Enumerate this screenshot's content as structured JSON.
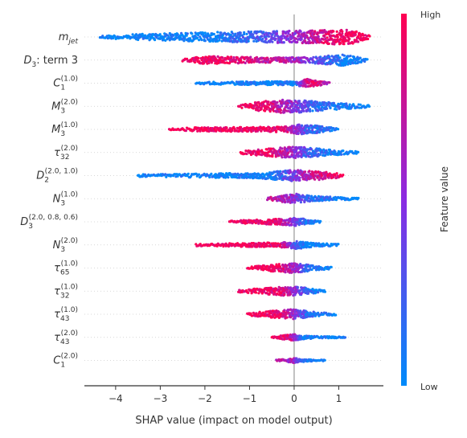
{
  "chart_data": {
    "type": "scatter",
    "subtype": "shap-beeswarm",
    "title": "",
    "xlabel": "SHAP value (impact on model output)",
    "ylabel": "",
    "xlim": [
      -4.7,
      2.0
    ],
    "xticks": [
      -4,
      -3,
      -2,
      -1,
      0,
      1
    ],
    "xtick_labels": [
      "−4",
      "−3",
      "−2",
      "−1",
      "0",
      "1"
    ],
    "grid": "dotted horizontal row guides",
    "zero_line": true,
    "colorbar": {
      "label": "Feature value",
      "high_label": "High",
      "low_label": "Low",
      "high_color": "#ff0052",
      "mid_color": "#8a2be2",
      "low_color": "#008bfb",
      "placement": "right"
    },
    "features": [
      {
        "label": "m_jet",
        "base": "m",
        "sub": "jet",
        "sup": "",
        "min": -4.35,
        "max": 1.7,
        "q": [
          -0.8,
          0.0,
          0.9
        ],
        "spread": 9,
        "profile": [
          [
            -4.35,
            0.2
          ],
          [
            -3.0,
            0.5
          ],
          [
            -1.5,
            0.7
          ],
          [
            -0.5,
            0.8
          ],
          [
            0.3,
            0.9
          ],
          [
            0.9,
            1.0
          ],
          [
            1.3,
            0.95
          ],
          [
            1.6,
            0.5
          ],
          [
            1.7,
            0.15
          ]
        ],
        "color_stops": [
          [
            -4.35,
            0.0
          ],
          [
            -2.0,
            0.02
          ],
          [
            -0.8,
            0.25
          ],
          [
            0.0,
            0.55
          ],
          [
            0.9,
            0.95
          ],
          [
            1.7,
            1.0
          ]
        ]
      },
      {
        "label": "D_3: term 3",
        "base": "D",
        "sub": "3",
        "sup": "",
        "suffix": ": term 3",
        "min": -2.5,
        "max": 1.65,
        "q": [
          -1.0,
          0.6,
          1.1
        ],
        "spread": 7,
        "profile": [
          [
            -2.5,
            0.2
          ],
          [
            -2.0,
            0.7
          ],
          [
            -1.5,
            0.6
          ],
          [
            -0.5,
            0.45
          ],
          [
            0.3,
            0.5
          ],
          [
            0.8,
            0.8
          ],
          [
            1.1,
            1.0
          ],
          [
            1.4,
            0.6
          ],
          [
            1.65,
            0.15
          ]
        ],
        "color_stops": [
          [
            -2.5,
            1.0
          ],
          [
            -1.5,
            0.9
          ],
          [
            -0.2,
            0.7
          ],
          [
            0.5,
            0.35
          ],
          [
            1.1,
            0.05
          ],
          [
            1.65,
            0.0
          ]
        ]
      },
      {
        "label": "C_1^(1.0)",
        "base": "C",
        "sub": "1",
        "sup": "(1.0)",
        "min": -2.2,
        "max": 0.8,
        "q": [
          -0.2,
          0.3,
          0.45
        ],
        "spread": 5,
        "profile": [
          [
            -2.2,
            0.25
          ],
          [
            -1.5,
            0.35
          ],
          [
            -0.5,
            0.45
          ],
          [
            0.0,
            0.55
          ],
          [
            0.3,
            1.0
          ],
          [
            0.5,
            0.7
          ],
          [
            0.8,
            0.2
          ]
        ],
        "color_stops": [
          [
            -2.2,
            0.0
          ],
          [
            0.0,
            0.05
          ],
          [
            0.25,
            0.7
          ],
          [
            0.4,
            0.95
          ],
          [
            0.8,
            0.55
          ]
        ]
      },
      {
        "label": "M_3^(2.0)",
        "base": "M",
        "sub": "3",
        "sup": "(2.0)",
        "min": -1.25,
        "max": 1.7,
        "q": [
          -0.4,
          0.05,
          0.5
        ],
        "spread": 8,
        "profile": [
          [
            -1.25,
            0.2
          ],
          [
            -0.8,
            0.7
          ],
          [
            -0.3,
            1.0
          ],
          [
            0.2,
            0.95
          ],
          [
            0.6,
            0.7
          ],
          [
            1.0,
            0.5
          ],
          [
            1.7,
            0.15
          ]
        ],
        "color_stops": [
          [
            -1.25,
            1.0
          ],
          [
            -0.6,
            0.9
          ],
          [
            0.0,
            0.5
          ],
          [
            0.4,
            0.2
          ],
          [
            1.7,
            0.0
          ]
        ]
      },
      {
        "label": "M_3^(1.0)",
        "base": "M",
        "sub": "3",
        "sup": "(1.0)",
        "min": -2.8,
        "max": 1.0,
        "q": [
          -0.6,
          0.1,
          0.45
        ],
        "spread": 6,
        "profile": [
          [
            -2.8,
            0.15
          ],
          [
            -2.2,
            0.4
          ],
          [
            -1.0,
            0.45
          ],
          [
            -0.2,
            0.6
          ],
          [
            0.1,
            1.0
          ],
          [
            0.5,
            0.8
          ],
          [
            1.0,
            0.2
          ]
        ],
        "color_stops": [
          [
            -2.8,
            1.0
          ],
          [
            -0.3,
            0.95
          ],
          [
            0.0,
            0.6
          ],
          [
            0.3,
            0.25
          ],
          [
            1.0,
            0.0
          ]
        ]
      },
      {
        "label": "τ_32^(2.0)",
        "base": "τ",
        "sub": "32",
        "sup": "(2.0)",
        "min": -1.2,
        "max": 1.45,
        "q": [
          -0.3,
          0.05,
          0.4
        ],
        "spread": 7,
        "profile": [
          [
            -1.2,
            0.25
          ],
          [
            -0.7,
            0.6
          ],
          [
            -0.1,
            1.0
          ],
          [
            0.3,
            0.9
          ],
          [
            0.7,
            0.55
          ],
          [
            1.45,
            0.2
          ]
        ],
        "color_stops": [
          [
            -1.2,
            1.0
          ],
          [
            -0.5,
            0.9
          ],
          [
            0.0,
            0.55
          ],
          [
            0.4,
            0.2
          ],
          [
            1.45,
            0.0
          ]
        ]
      },
      {
        "label": "D_2^(2.0, 1.0)",
        "base": "D",
        "sub": "2",
        "sup": "(2.0, 1.0)",
        "min": -3.5,
        "max": 1.1,
        "q": [
          -0.3,
          0.05,
          0.45
        ],
        "spread": 7,
        "profile": [
          [
            -3.5,
            0.2
          ],
          [
            -2.0,
            0.35
          ],
          [
            -0.8,
            0.5
          ],
          [
            0.0,
            1.0
          ],
          [
            0.5,
            0.8
          ],
          [
            0.9,
            0.5
          ],
          [
            1.1,
            0.25
          ]
        ],
        "color_stops": [
          [
            -3.5,
            0.0
          ],
          [
            -0.5,
            0.05
          ],
          [
            0.0,
            0.45
          ],
          [
            0.5,
            0.8
          ],
          [
            1.1,
            1.0
          ]
        ]
      },
      {
        "label": "N_3^(1.0)",
        "base": "N",
        "sub": "3",
        "sup": "(1.0)",
        "min": -0.6,
        "max": 1.45,
        "q": [
          -0.2,
          0.05,
          0.3
        ],
        "spread": 6,
        "profile": [
          [
            -0.6,
            0.3
          ],
          [
            -0.2,
            0.75
          ],
          [
            0.05,
            1.0
          ],
          [
            0.4,
            0.55
          ],
          [
            0.9,
            0.35
          ],
          [
            1.45,
            0.2
          ]
        ],
        "color_stops": [
          [
            -0.6,
            0.75
          ],
          [
            0.0,
            0.55
          ],
          [
            0.3,
            0.2
          ],
          [
            1.45,
            0.0
          ]
        ]
      },
      {
        "label": "D_3^(2.0, 0.8, 0.6)",
        "base": "D",
        "sub": "3",
        "sup": "(2.0, 0.8, 0.6)",
        "min": -1.45,
        "max": 0.6,
        "q": [
          -0.35,
          0.05,
          0.25
        ],
        "spread": 5,
        "profile": [
          [
            -1.45,
            0.25
          ],
          [
            -0.8,
            0.55
          ],
          [
            -0.2,
            0.8
          ],
          [
            0.05,
            1.0
          ],
          [
            0.3,
            0.6
          ],
          [
            0.6,
            0.2
          ]
        ],
        "color_stops": [
          [
            -1.45,
            1.0
          ],
          [
            -0.4,
            0.9
          ],
          [
            0.0,
            0.5
          ],
          [
            0.25,
            0.15
          ],
          [
            0.6,
            0.0
          ]
        ]
      },
      {
        "label": "N_3^(2.0)",
        "base": "N",
        "sub": "3",
        "sup": "(2.0)",
        "min": -2.2,
        "max": 1.0,
        "q": [
          -0.5,
          0.0,
          0.25
        ],
        "spread": 5,
        "profile": [
          [
            -2.2,
            0.3
          ],
          [
            -1.0,
            0.45
          ],
          [
            -0.2,
            0.65
          ],
          [
            0.05,
            1.0
          ],
          [
            0.4,
            0.5
          ],
          [
            1.0,
            0.2
          ]
        ],
        "color_stops": [
          [
            -2.2,
            1.0
          ],
          [
            -0.3,
            0.9
          ],
          [
            0.0,
            0.3
          ],
          [
            0.3,
            0.02
          ],
          [
            1.0,
            0.0
          ]
        ]
      },
      {
        "label": "τ_65^(1.0)",
        "base": "τ",
        "sub": "65",
        "sup": "(1.0)",
        "min": -1.05,
        "max": 0.85,
        "q": [
          -0.35,
          0.05,
          0.3
        ],
        "spread": 6,
        "profile": [
          [
            -1.05,
            0.25
          ],
          [
            -0.5,
            0.7
          ],
          [
            -0.05,
            1.0
          ],
          [
            0.3,
            0.7
          ],
          [
            0.6,
            0.4
          ],
          [
            0.85,
            0.2
          ]
        ],
        "color_stops": [
          [
            -1.05,
            1.0
          ],
          [
            -0.3,
            0.9
          ],
          [
            0.05,
            0.55
          ],
          [
            0.35,
            0.15
          ],
          [
            0.85,
            0.0
          ]
        ]
      },
      {
        "label": "τ_32^(1.0)",
        "base": "τ",
        "sub": "32",
        "sup": "(1.0)",
        "min": -1.25,
        "max": 0.7,
        "q": [
          -0.4,
          0.0,
          0.25
        ],
        "spread": 6,
        "profile": [
          [
            -1.25,
            0.25
          ],
          [
            -0.6,
            0.65
          ],
          [
            -0.1,
            1.0
          ],
          [
            0.2,
            0.75
          ],
          [
            0.5,
            0.4
          ],
          [
            0.7,
            0.2
          ]
        ],
        "color_stops": [
          [
            -1.25,
            1.0
          ],
          [
            -0.3,
            0.9
          ],
          [
            0.0,
            0.55
          ],
          [
            0.3,
            0.15
          ],
          [
            0.7,
            0.0
          ]
        ]
      },
      {
        "label": "τ_43^(1.0)",
        "base": "τ",
        "sub": "43",
        "sup": "(1.0)",
        "min": -1.05,
        "max": 0.95,
        "q": [
          -0.35,
          0.0,
          0.3
        ],
        "spread": 6,
        "profile": [
          [
            -1.05,
            0.25
          ],
          [
            -0.5,
            0.7
          ],
          [
            -0.05,
            1.0
          ],
          [
            0.3,
            0.7
          ],
          [
            0.6,
            0.35
          ],
          [
            0.95,
            0.2
          ]
        ],
        "color_stops": [
          [
            -1.05,
            1.0
          ],
          [
            -0.3,
            0.9
          ],
          [
            0.0,
            0.55
          ],
          [
            0.3,
            0.15
          ],
          [
            0.95,
            0.0
          ]
        ]
      },
      {
        "label": "τ_43^(2.0)",
        "base": "τ",
        "sub": "43",
        "sup": "(2.0)",
        "min": -0.5,
        "max": 1.15,
        "q": [
          -0.1,
          0.0,
          0.2
        ],
        "spread": 4,
        "profile": [
          [
            -0.5,
            0.25
          ],
          [
            -0.15,
            0.75
          ],
          [
            0.0,
            1.0
          ],
          [
            0.2,
            0.55
          ],
          [
            0.6,
            0.3
          ],
          [
            1.15,
            0.2
          ]
        ],
        "color_stops": [
          [
            -0.5,
            1.0
          ],
          [
            -0.1,
            0.85
          ],
          [
            0.05,
            0.45
          ],
          [
            0.2,
            0.1
          ],
          [
            1.15,
            0.0
          ]
        ]
      },
      {
        "label": "C_1^(2.0)",
        "base": "C",
        "sub": "1",
        "sup": "(2.0)",
        "min": -0.4,
        "max": 0.7,
        "q": [
          -0.1,
          0.0,
          0.15
        ],
        "spread": 3,
        "profile": [
          [
            -0.4,
            0.3
          ],
          [
            -0.1,
            0.7
          ],
          [
            0.0,
            1.0
          ],
          [
            0.15,
            0.6
          ],
          [
            0.4,
            0.35
          ],
          [
            0.7,
            0.2
          ]
        ],
        "color_stops": [
          [
            -0.4,
            0.7
          ],
          [
            0.0,
            0.6
          ],
          [
            0.1,
            0.3
          ],
          [
            0.3,
            0.05
          ],
          [
            0.7,
            0.0
          ]
        ]
      }
    ]
  }
}
